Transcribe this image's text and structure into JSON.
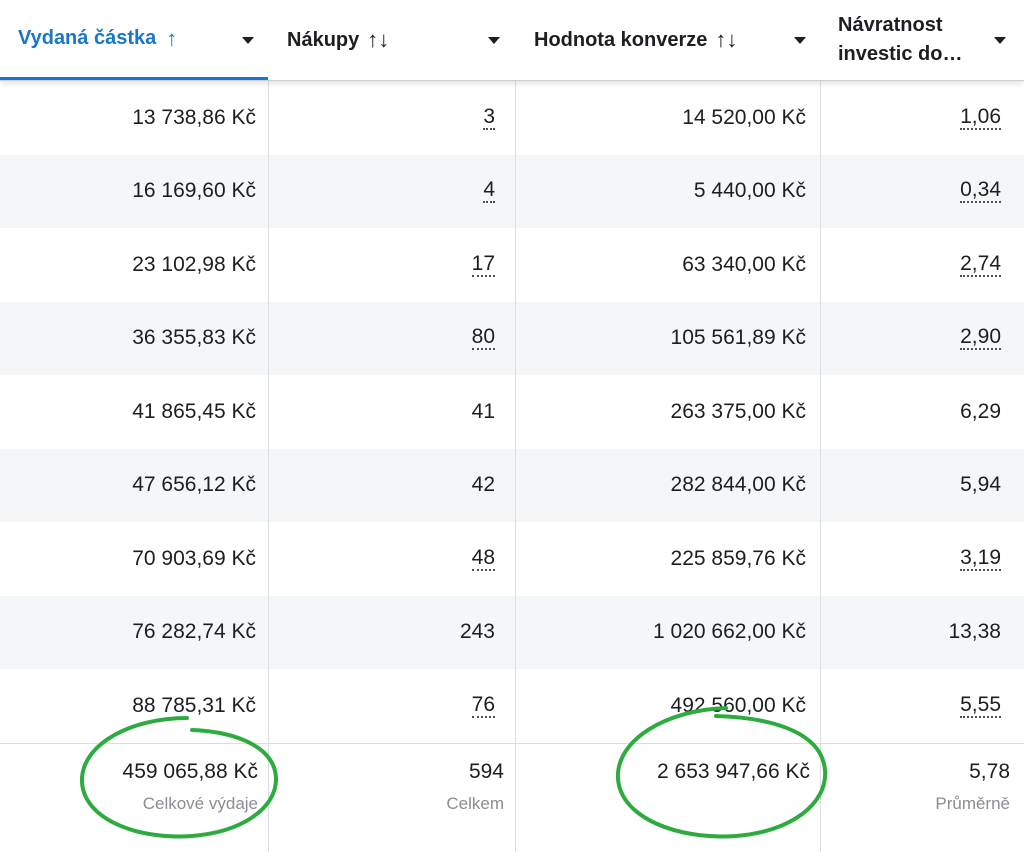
{
  "columns": [
    {
      "label": "Vydaná částka",
      "sort": "↑",
      "active": true
    },
    {
      "label": "Nákupy",
      "sort": "↑↓"
    },
    {
      "label": "Hodnota konverze",
      "sort": "↑↓"
    },
    {
      "label_line1": "Návratnost",
      "label_line2": "investic do…"
    }
  ],
  "rows": [
    {
      "spend": "13 738,86 Kč",
      "purchases": "3",
      "value": "14 520,00 Kč",
      "roas": "1,06",
      "dotted": true
    },
    {
      "spend": "16 169,60 Kč",
      "purchases": "4",
      "value": "5 440,00 Kč",
      "roas": "0,34",
      "dotted": true
    },
    {
      "spend": "23 102,98 Kč",
      "purchases": "17",
      "value": "63 340,00 Kč",
      "roas": "2,74",
      "dotted": true
    },
    {
      "spend": "36 355,83 Kč",
      "purchases": "80",
      "value": "105 561,89 Kč",
      "roas": "2,90",
      "dotted": true
    },
    {
      "spend": "41 865,45 Kč",
      "purchases": "41",
      "value": "263 375,00 Kč",
      "roas": "6,29",
      "dotted": false
    },
    {
      "spend": "47 656,12 Kč",
      "purchases": "42",
      "value": "282 844,00 Kč",
      "roas": "5,94",
      "dotted": false
    },
    {
      "spend": "70 903,69 Kč",
      "purchases": "48",
      "value": "225 859,76 Kč",
      "roas": "3,19",
      "dotted": true
    },
    {
      "spend": "76 282,74 Kč",
      "purchases": "243",
      "value": "1 020 662,00 Kč",
      "roas": "13,38",
      "dotted": false
    },
    {
      "spend": "88 785,31 Kč",
      "purchases": "76",
      "value": "492 560,00 Kč",
      "roas": "5,55",
      "dotted": true
    }
  ],
  "totals": {
    "spend": {
      "value": "459 065,88 Kč",
      "label": "Celkové výdaje"
    },
    "purchases": {
      "value": "594",
      "label": "Celkem"
    },
    "conv_value": {
      "value": "2 653 947,66 Kč",
      "label": ""
    },
    "roas": {
      "value": "5,78",
      "label": "Průměrně"
    }
  },
  "colors": {
    "accent": "#1877c9",
    "annotation": "#2eab3f"
  }
}
